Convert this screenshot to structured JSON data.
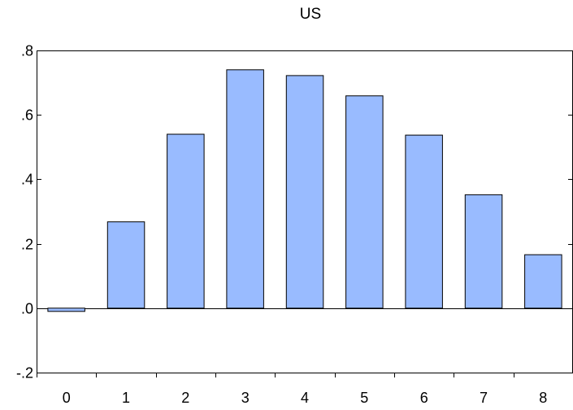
{
  "chart_data": {
    "type": "bar",
    "title": "US",
    "xlabel": "",
    "ylabel": "",
    "categories": [
      "0",
      "1",
      "2",
      "3",
      "4",
      "5",
      "6",
      "7",
      "8"
    ],
    "values": [
      -0.01,
      0.268,
      0.54,
      0.74,
      0.722,
      0.659,
      0.537,
      0.352,
      0.166
    ],
    "ylim": [
      -0.2,
      0.8
    ],
    "yticks": [
      -0.2,
      0.0,
      0.2,
      0.4,
      0.6,
      0.8
    ],
    "ytick_labels": [
      "-.2",
      ".0",
      ".2",
      ".4",
      ".6",
      ".8"
    ],
    "grid": false,
    "legend": "none",
    "colors": {
      "bar_fill": "#99BBFF",
      "bar_stroke": "#000000",
      "axis": "#000000",
      "background": "#FFFFFF"
    }
  }
}
